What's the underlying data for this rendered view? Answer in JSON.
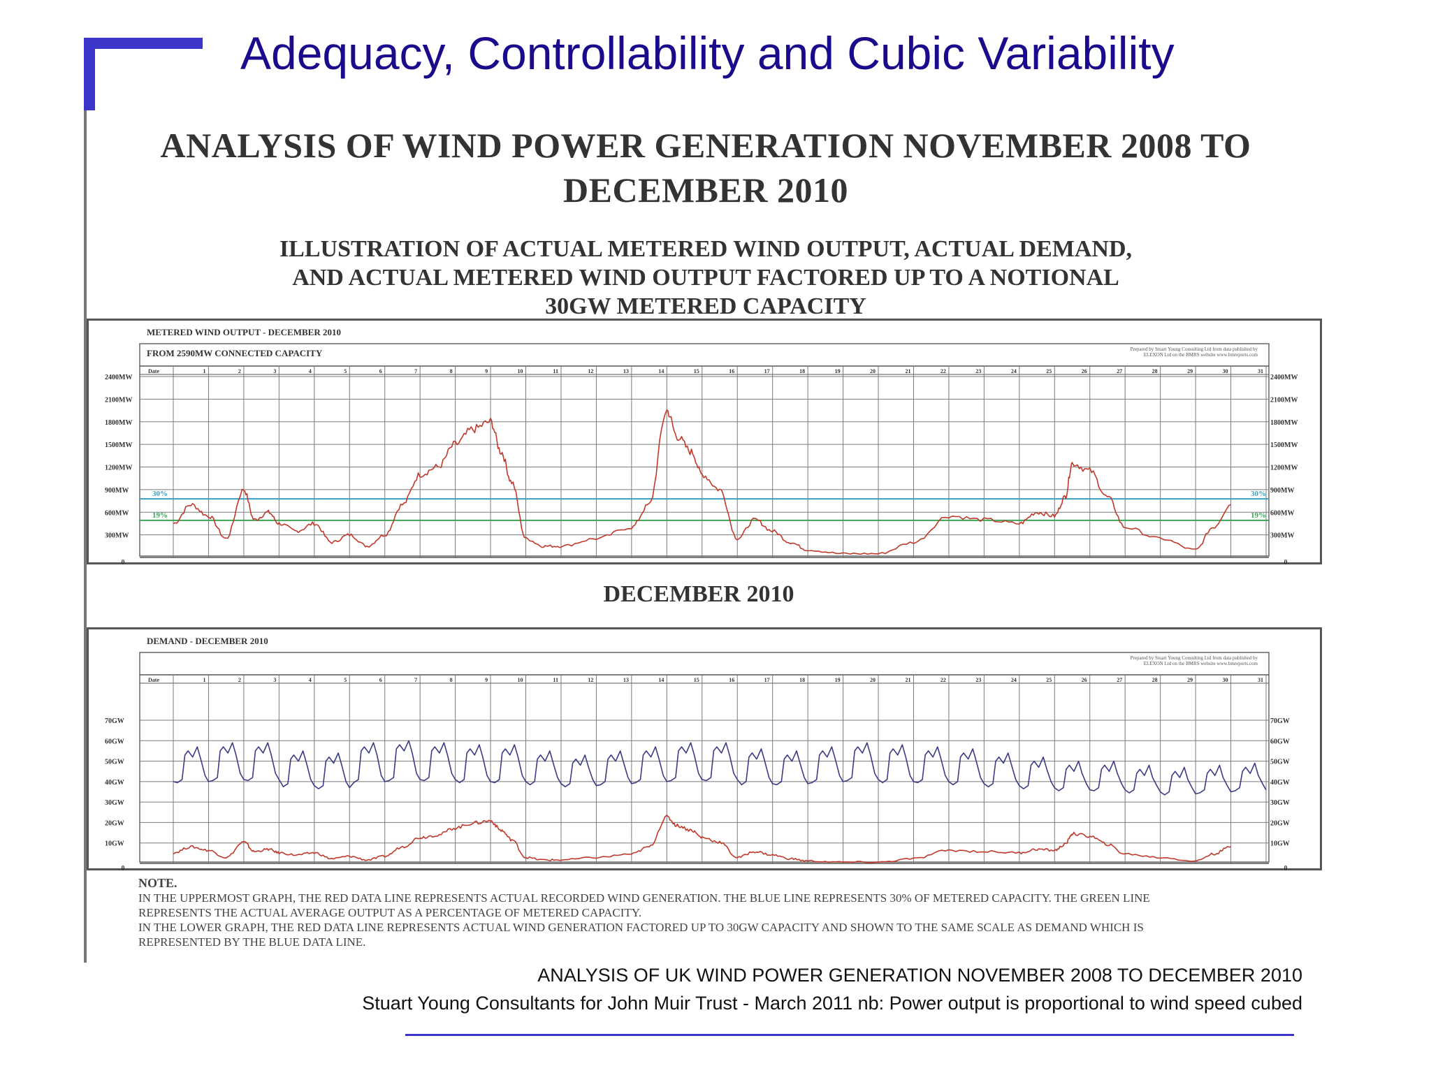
{
  "slide": {
    "title": "Adequacy, Controllability and  Cubic Variability",
    "accent_color": "#3b35c9",
    "title_color": "#1a0a8c"
  },
  "document": {
    "heading_line1": "ANALYSIS OF WIND POWER GENERATION NOVEMBER 2008 TO",
    "heading_line2": "DECEMBER 2010",
    "subheading_line1": "ILLUSTRATION OF ACTUAL METERED WIND OUTPUT,  ACTUAL DEMAND,",
    "subheading_line2": "AND ACTUAL METERED WIND OUTPUT FACTORED UP TO A  NOTIONAL",
    "subheading_line3": "30GW METERED CAPACITY",
    "middle_label": "DECEMBER  2010",
    "note_title": "NOTE.",
    "note_line1": "IN THE UPPERMOST GRAPH, THE RED DATA LINE REPRESENTS ACTUAL RECORDED WIND GENERATION.  THE BLUE LINE REPRESENTS 30% OF METERED CAPACITY. THE GREEN LINE",
    "note_line2": "REPRESENTS THE ACTUAL AVERAGE OUTPUT AS A PERCENTAGE OF METERED CAPACITY.",
    "note_line3": "IN THE LOWER GRAPH, THE RED DATA LINE REPRESENTS  ACTUAL WIND GENERATION FACTORED UP TO 30GW CAPACITY  AND SHOWN TO THE SAME SCALE AS DEMAND WHICH IS",
    "note_line4": "REPRESENTED  BY THE BLUE DATA LINE."
  },
  "footer": {
    "line1": "ANALYSIS OF UK WIND POWER GENERATION NOVEMBER 2008 TO DECEMBER 2010",
    "line2": "Stuart Young Consultants for John Muir Trust - March 2011  nb: Power output is proportional to wind speed cubed"
  },
  "chart_data": [
    {
      "type": "line",
      "title": "METERED WIND OUTPUT - DECEMBER 2010",
      "subtitle": "FROM 2590MW CONNECTED CAPACITY",
      "credit_line1": "Prepared by Stuart Young Consulting Ltd from data published by",
      "credit_line2": "ELEXON Ltd on the BMRS website  www.bmreports.com",
      "x_header": "Date",
      "x_ticks": [
        "1",
        "2",
        "3",
        "4",
        "5",
        "6",
        "7",
        "8",
        "9",
        "10",
        "11",
        "12",
        "13",
        "14",
        "15",
        "16",
        "17",
        "18",
        "19",
        "20",
        "21",
        "22",
        "23",
        "24",
        "25",
        "26",
        "27",
        "28",
        "29",
        "30",
        "31"
      ],
      "y_ticks": [
        "0",
        "300MW",
        "600MW",
        "900MW",
        "1200MW",
        "1500MW",
        "1800MW",
        "2100MW",
        "2400MW"
      ],
      "ylim": [
        0,
        2400
      ],
      "grid": true,
      "colors": {
        "wind": "#c0392b",
        "capacity_30": "#3a9fbf",
        "average_19": "#3aa655",
        "grid": "#7a7a7a"
      },
      "reference_lines": [
        {
          "label": "30%",
          "value": 777
        },
        {
          "label": "19%",
          "value": 492
        }
      ],
      "series": [
        {
          "color": "#c0392b",
          "x": [
            1,
            1.5,
            2,
            2.5,
            3,
            3.3,
            3.7,
            4,
            4.5,
            5,
            5.5,
            6,
            6.5,
            7,
            7.5,
            8,
            8.5,
            9,
            9.5,
            10,
            10.3,
            10.6,
            11,
            11.5,
            12,
            13,
            14,
            14.5,
            15,
            15.3,
            15.7,
            16,
            16.5,
            17,
            17.5,
            18,
            18.5,
            19,
            20,
            21,
            22,
            23,
            24,
            25,
            25.5,
            26,
            26.3,
            26.5,
            27,
            27.5,
            28,
            29,
            30,
            30.5,
            31
          ],
          "y": [
            450,
            700,
            550,
            250,
            900,
            500,
            600,
            450,
            350,
            450,
            200,
            300,
            150,
            300,
            700,
            1100,
            1200,
            1500,
            1700,
            1800,
            1400,
            1000,
            250,
            150,
            150,
            250,
            400,
            700,
            1950,
            1600,
            1400,
            1100,
            900,
            250,
            500,
            350,
            200,
            100,
            50,
            50,
            200,
            550,
            500,
            450,
            600,
            550,
            800,
            1250,
            1150,
            800,
            400,
            250,
            100,
            400,
            700
          ]
        }
      ]
    },
    {
      "type": "line",
      "title": "DEMAND - DECEMBER 2010",
      "credit_line1": "Prepared by Stuart Young Consulting Ltd from data published by",
      "credit_line2": "ELEXON Ltd on the BMRS website  www.bmreports.com",
      "x_header": "Date",
      "x_ticks": [
        "1",
        "2",
        "3",
        "4",
        "5",
        "6",
        "7",
        "8",
        "9",
        "10",
        "11",
        "12",
        "13",
        "14",
        "15",
        "16",
        "17",
        "18",
        "19",
        "20",
        "21",
        "22",
        "23",
        "24",
        "25",
        "26",
        "27",
        "28",
        "29",
        "30",
        "31"
      ],
      "y_ticks": [
        "0",
        "10GW",
        "20GW",
        "30GW",
        "40GW",
        "50GW",
        "60GW",
        "70GW"
      ],
      "ylim": [
        0,
        70
      ],
      "grid": true,
      "colors": {
        "demand": "#3b3b86",
        "wind": "#c0392b",
        "grid": "#7a7a7a"
      },
      "series": [
        {
          "color": "#3b3b86",
          "daily_peak_gw": [
            57,
            59,
            59,
            55,
            54,
            59,
            60,
            59,
            58,
            58,
            55,
            53,
            55,
            57,
            59,
            59,
            56,
            55,
            57,
            59,
            58,
            57,
            56,
            54,
            52,
            50,
            50,
            48,
            47,
            48,
            49
          ],
          "nightly_low_gw": [
            40,
            41,
            41,
            38,
            37,
            40,
            41,
            41,
            40,
            40,
            39,
            38,
            39,
            40,
            41,
            41,
            39,
            39,
            40,
            41,
            40,
            40,
            39,
            38,
            37,
            36,
            36,
            35,
            34,
            35,
            36
          ]
        },
        {
          "color": "#c0392b",
          "x": [
            1,
            1.5,
            2,
            2.5,
            3,
            3.3,
            3.7,
            4,
            4.5,
            5,
            5.5,
            6,
            6.5,
            7,
            7.5,
            8,
            8.5,
            9,
            9.5,
            10,
            10.3,
            10.6,
            11,
            11.5,
            12,
            13,
            14,
            14.5,
            15,
            15.3,
            15.7,
            16,
            16.5,
            17,
            17.5,
            18,
            18.5,
            19,
            20,
            21,
            22,
            23,
            24,
            25,
            25.5,
            26,
            26.3,
            26.5,
            27,
            27.5,
            28,
            29,
            30,
            30.5,
            31
          ],
          "y": [
            5.2,
            8.1,
            6.4,
            2.9,
            10.4,
            5.8,
            6.9,
            5.2,
            4.1,
            5.2,
            2.3,
            3.5,
            1.7,
            3.5,
            8.1,
            12.7,
            13.9,
            17.4,
            19.7,
            20.8,
            16.2,
            11.6,
            2.9,
            1.7,
            1.7,
            2.9,
            4.6,
            8.1,
            22.6,
            18.5,
            16.2,
            12.7,
            10.4,
            2.9,
            5.8,
            4.1,
            2.3,
            1.2,
            0.6,
            0.6,
            2.3,
            6.4,
            5.8,
            5.2,
            6.9,
            6.4,
            9.3,
            14.5,
            13.3,
            9.3,
            4.6,
            2.9,
            1.2,
            4.6,
            8.1
          ]
        }
      ]
    }
  ]
}
